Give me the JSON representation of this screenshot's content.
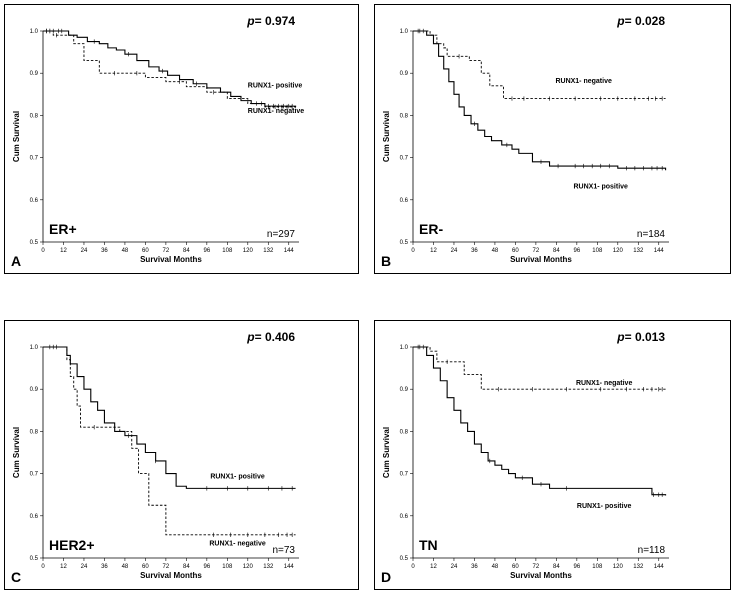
{
  "chart_data": [
    {
      "type": "line",
      "panel": "A",
      "group": "ER+",
      "n": "n=297",
      "p_prefix": "p",
      "p_value": "= 0.974",
      "xlabel": "Survival Months",
      "ylabel": "Cum Survival",
      "xticks": [
        0,
        12,
        24,
        36,
        48,
        60,
        72,
        84,
        96,
        108,
        120,
        132,
        144
      ],
      "yticks": [
        "0.5",
        "0.6",
        "0.7",
        "0.8",
        "0.9",
        "1.0"
      ],
      "xlim": [
        0,
        150
      ],
      "ylim": [
        0.5,
        1.0
      ],
      "series": [
        {
          "name": "RUNX1- positive",
          "style": "solid",
          "x": [
            0,
            15,
            20,
            26,
            33,
            38,
            43,
            48,
            55,
            62,
            68,
            73,
            80,
            88,
            96,
            104,
            110,
            116,
            122,
            130,
            148
          ],
          "y": [
            1.0,
            0.99,
            0.985,
            0.975,
            0.97,
            0.96,
            0.955,
            0.945,
            0.93,
            0.915,
            0.905,
            0.895,
            0.885,
            0.875,
            0.865,
            0.855,
            0.845,
            0.835,
            0.828,
            0.822,
            0.82
          ],
          "censor_x": [
            2,
            4,
            6,
            9,
            11,
            30,
            50,
            70,
            90,
            125,
            132,
            135,
            138,
            141,
            144,
            146
          ],
          "label_x": 120,
          "label_y": 0.866,
          "label_anchor": "start"
        },
        {
          "name": "RUNX1- negative",
          "style": "dashed",
          "x": [
            0,
            6,
            18,
            24,
            33,
            60,
            72,
            84,
            96,
            108,
            120,
            130,
            148
          ],
          "y": [
            1.0,
            0.99,
            0.97,
            0.93,
            0.9,
            0.89,
            0.88,
            0.868,
            0.855,
            0.84,
            0.828,
            0.82,
            0.82
          ],
          "censor_x": [
            2,
            4,
            8,
            42,
            55,
            80,
            100,
            128,
            132,
            136,
            140,
            143,
            146
          ],
          "label_x": 120,
          "label_y": 0.806,
          "label_anchor": "start"
        }
      ]
    },
    {
      "type": "line",
      "panel": "B",
      "group": "ER-",
      "n": "n=184",
      "p_prefix": "p",
      "p_value": "= 0.028",
      "xlabel": "Survival Months",
      "ylabel": "Cum Survival",
      "xticks": [
        0,
        12,
        24,
        36,
        48,
        60,
        72,
        84,
        96,
        108,
        120,
        132,
        144
      ],
      "yticks": [
        "0.5",
        "0.6",
        "0.7",
        "0.8",
        "0.9",
        "1.0"
      ],
      "xlim": [
        0,
        150
      ],
      "ylim": [
        0.5,
        1.0
      ],
      "series": [
        {
          "name": "RUNX1- negative",
          "style": "dashed",
          "x": [
            0,
            10,
            14,
            18,
            20,
            33,
            40,
            45,
            53,
            148
          ],
          "y": [
            1.0,
            0.99,
            0.97,
            0.96,
            0.94,
            0.93,
            0.9,
            0.87,
            0.84,
            0.84
          ],
          "censor_x": [
            3,
            6,
            27,
            58,
            65,
            80,
            95,
            110,
            120,
            130,
            138,
            142,
            146
          ],
          "label_x": 100,
          "label_y": 0.877,
          "label_anchor": "middle"
        },
        {
          "name": "RUNX1- positive",
          "style": "solid",
          "x": [
            0,
            8,
            12,
            15,
            18,
            21,
            24,
            27,
            30,
            34,
            38,
            42,
            46,
            52,
            58,
            62,
            70,
            80,
            90,
            120,
            148
          ],
          "y": [
            1.0,
            0.99,
            0.97,
            0.94,
            0.91,
            0.88,
            0.85,
            0.82,
            0.8,
            0.78,
            0.765,
            0.75,
            0.74,
            0.73,
            0.72,
            0.71,
            0.69,
            0.68,
            0.68,
            0.675,
            0.67
          ],
          "censor_x": [
            4,
            36,
            55,
            75,
            85,
            95,
            100,
            105,
            110,
            115,
            125,
            130,
            135,
            140,
            143,
            146
          ],
          "label_x": 110,
          "label_y": 0.627,
          "label_anchor": "middle"
        }
      ]
    },
    {
      "type": "line",
      "panel": "C",
      "group": "HER2+",
      "n": "n=73",
      "p_prefix": "p",
      "p_value": "= 0.406",
      "xlabel": "Survival Months",
      "ylabel": "Cum Survival",
      "xticks": [
        0,
        12,
        24,
        36,
        48,
        60,
        72,
        84,
        96,
        108,
        120,
        132,
        144
      ],
      "yticks": [
        "0.5",
        "0.6",
        "0.7",
        "0.8",
        "0.9",
        "1.0"
      ],
      "xlim": [
        0,
        150
      ],
      "ylim": [
        0.5,
        1.0
      ],
      "series": [
        {
          "name": "RUNX1- positive",
          "style": "solid",
          "x": [
            0,
            14,
            16,
            20,
            24,
            28,
            32,
            36,
            42,
            48,
            55,
            60,
            66,
            72,
            78,
            84,
            148
          ],
          "y": [
            1.0,
            0.98,
            0.96,
            0.93,
            0.9,
            0.87,
            0.85,
            0.82,
            0.8,
            0.79,
            0.77,
            0.75,
            0.73,
            0.7,
            0.67,
            0.665,
            0.665
          ],
          "censor_x": [
            4,
            8,
            50,
            66,
            96,
            108,
            120,
            132,
            140,
            146
          ],
          "label_x": 114,
          "label_y": 0.688,
          "label_anchor": "middle"
        },
        {
          "name": "RUNX1- negative",
          "style": "dashed",
          "x": [
            0,
            14,
            16,
            18,
            20,
            22,
            36,
            45,
            52,
            56,
            62,
            72,
            148
          ],
          "y": [
            1.0,
            0.97,
            0.93,
            0.9,
            0.86,
            0.81,
            0.81,
            0.8,
            0.76,
            0.7,
            0.625,
            0.555,
            0.555
          ],
          "censor_x": [
            6,
            30,
            100,
            110,
            120,
            130,
            138,
            143,
            146
          ],
          "label_x": 114,
          "label_y": 0.53,
          "label_anchor": "middle"
        }
      ]
    },
    {
      "type": "line",
      "panel": "D",
      "group": "TN",
      "n": "n=118",
      "p_prefix": "p",
      "p_value": "= 0.013",
      "xlabel": "Survival Months",
      "ylabel": "Cum Survival",
      "xticks": [
        0,
        12,
        24,
        36,
        48,
        60,
        72,
        84,
        96,
        108,
        120,
        132,
        144
      ],
      "yticks": [
        "0.5",
        "0.6",
        "0.7",
        "0.8",
        "0.9",
        "1.0"
      ],
      "xlim": [
        0,
        150
      ],
      "ylim": [
        0.5,
        1.0
      ],
      "series": [
        {
          "name": "RUNX1- negative",
          "style": "dashed",
          "x": [
            0,
            10,
            14,
            30,
            40,
            148
          ],
          "y": [
            1.0,
            0.99,
            0.965,
            0.935,
            0.9,
            0.9
          ],
          "censor_x": [
            3,
            6,
            20,
            50,
            70,
            90,
            110,
            125,
            135,
            140,
            144,
            146
          ],
          "label_x": 112,
          "label_y": 0.91,
          "label_anchor": "middle"
        },
        {
          "name": "RUNX1- positive",
          "style": "solid",
          "x": [
            0,
            8,
            12,
            16,
            20,
            24,
            28,
            32,
            36,
            40,
            44,
            48,
            52,
            56,
            60,
            70,
            80,
            140,
            148
          ],
          "y": [
            1.0,
            0.98,
            0.95,
            0.92,
            0.88,
            0.85,
            0.82,
            0.8,
            0.77,
            0.75,
            0.73,
            0.72,
            0.71,
            0.7,
            0.69,
            0.675,
            0.665,
            0.65,
            0.648
          ],
          "censor_x": [
            4,
            45,
            64,
            75,
            90,
            141,
            144,
            146
          ],
          "label_x": 112,
          "label_y": 0.618,
          "label_anchor": "middle"
        }
      ]
    }
  ]
}
